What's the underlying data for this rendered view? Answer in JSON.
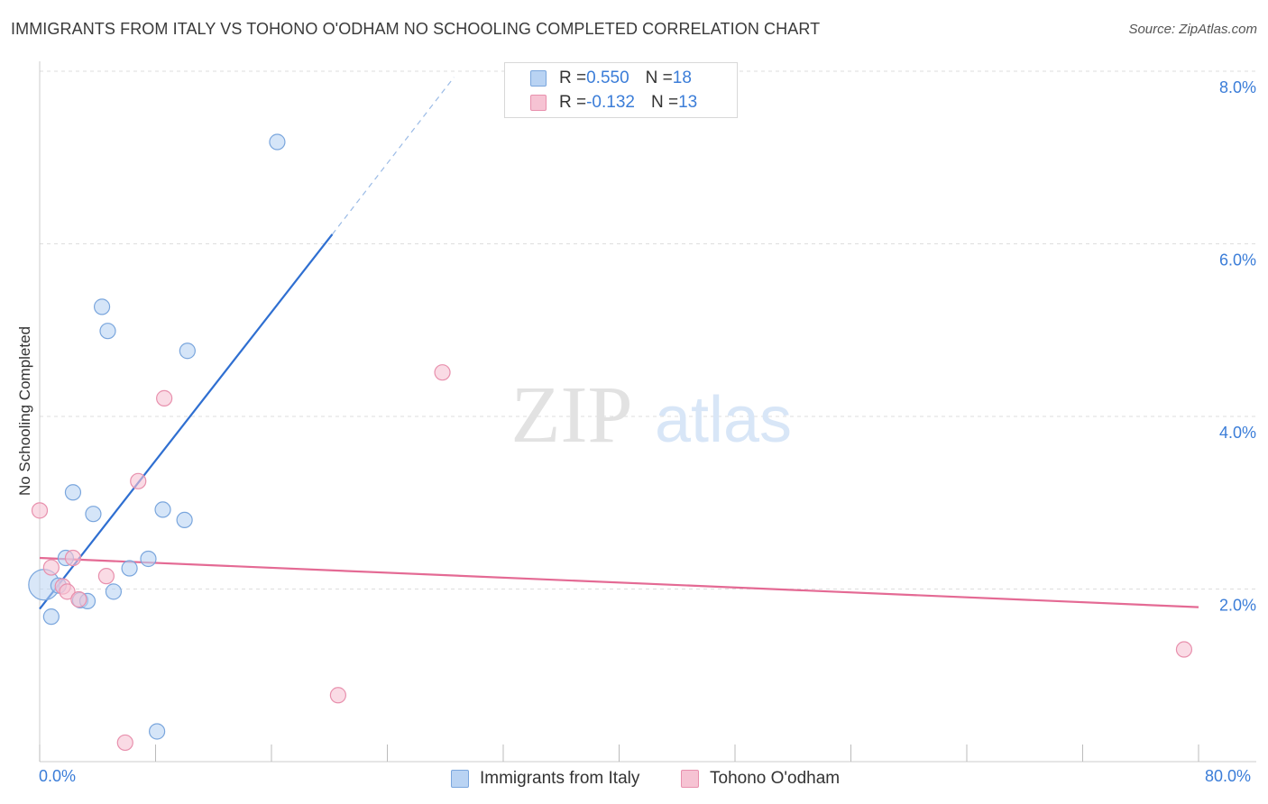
{
  "title": "IMMIGRANTS FROM ITALY VS TOHONO O'ODHAM NO SCHOOLING COMPLETED CORRELATION CHART",
  "source": "Source: ZipAtlas.com",
  "watermark": {
    "zip": "ZIP",
    "atlas": "atlas"
  },
  "colors": {
    "italy_fill": "#b9d3f3",
    "italy_stroke": "#7aa6dd",
    "italy_line": "#2f6fd1",
    "tohono_fill": "#f6c3d3",
    "tohono_stroke": "#e890ad",
    "tohono_line": "#e46a94",
    "tick_text": "#3b7dd8",
    "grid": "#dddddd"
  },
  "legend": {
    "italy": {
      "r_label": "R = ",
      "r_value": "0.550",
      "n_label": "N = ",
      "n_value": "18"
    },
    "tohono": {
      "r_label": "R = ",
      "r_value": "-0.132",
      "n_label": "N = ",
      "n_value": "13"
    }
  },
  "bottom_legend": {
    "italy": "Immigrants from Italy",
    "tohono": "Tohono O'odham"
  },
  "chart_data": {
    "type": "scatter",
    "title": "IMMIGRANTS FROM ITALY VS TOHONO O'ODHAM NO SCHOOLING COMPLETED CORRELATION CHART",
    "xlabel": "",
    "ylabel": "No Schooling Completed",
    "xlim": [
      0,
      80
    ],
    "ylim": [
      0,
      8.0
    ],
    "x_tick_labels": [
      "0.0%",
      "80.0%"
    ],
    "y_tick_labels": [
      "2.0%",
      "4.0%",
      "6.0%",
      "8.0%"
    ],
    "y_ticks": [
      2.0,
      4.0,
      6.0,
      8.0
    ],
    "series": [
      {
        "name": "Immigrants from Italy",
        "points": [
          [
            0.3,
            2.05
          ],
          [
            0.8,
            1.68
          ],
          [
            1.3,
            2.04
          ],
          [
            1.8,
            2.36
          ],
          [
            2.3,
            3.12
          ],
          [
            2.8,
            1.87
          ],
          [
            3.3,
            1.86
          ],
          [
            3.7,
            2.87
          ],
          [
            4.3,
            5.27
          ],
          [
            4.7,
            4.99
          ],
          [
            5.1,
            1.97
          ],
          [
            6.2,
            2.24
          ],
          [
            7.5,
            2.35
          ],
          [
            8.1,
            0.35
          ],
          [
            8.5,
            2.92
          ],
          [
            10.0,
            2.8
          ],
          [
            10.2,
            4.76
          ],
          [
            16.4,
            7.18
          ]
        ],
        "trend": {
          "x0": 0.0,
          "y0": 1.77,
          "x1": 20.2,
          "y1": 6.11,
          "dash_to_x": 28.6,
          "dash_to_y": 7.93
        }
      },
      {
        "name": "Tohono O'odham",
        "points": [
          [
            0.0,
            2.91
          ],
          [
            0.8,
            2.25
          ],
          [
            1.6,
            2.03
          ],
          [
            1.9,
            1.97
          ],
          [
            2.3,
            2.36
          ],
          [
            2.7,
            1.88
          ],
          [
            4.6,
            2.15
          ],
          [
            5.9,
            0.22
          ],
          [
            6.8,
            3.25
          ],
          [
            8.6,
            4.21
          ],
          [
            20.6,
            0.77
          ],
          [
            27.8,
            4.51
          ],
          [
            79.0,
            1.3
          ]
        ],
        "trend": {
          "x0": 0.0,
          "y0": 2.36,
          "x1": 80.0,
          "y1": 1.79
        }
      }
    ]
  }
}
